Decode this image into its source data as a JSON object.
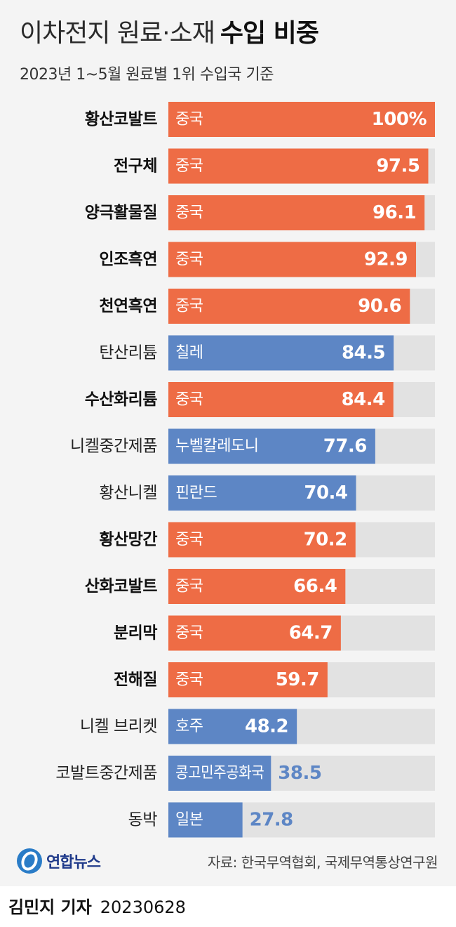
{
  "title": {
    "light": "이차전지 원료·소재",
    "bold": "수입 비중"
  },
  "subtitle": "2023년 1~5월 원료별 1위 수입국 기준",
  "colors": {
    "china": "#ee6c45",
    "other": "#5d86c5",
    "track": "#e2e2e2",
    "outside_value": "#5d86c5"
  },
  "chart_data": {
    "type": "bar",
    "orientation": "horizontal",
    "title": "이차전지 원료·소재 수입 비중",
    "subtitle": "2023년 1~5월 원료별 1위 수입국 기준",
    "xlim": [
      0,
      100
    ],
    "categories": [
      "황산코발트",
      "전구체",
      "양극활물질",
      "인조흑연",
      "천연흑연",
      "탄산리튬",
      "수산화리튬",
      "니켈중간제품",
      "황산니켈",
      "황산망간",
      "산화코발트",
      "분리막",
      "전해질",
      "니켈 브리켓",
      "코발트중간제품",
      "동박"
    ],
    "countries": [
      "중국",
      "중국",
      "중국",
      "중국",
      "중국",
      "칠레",
      "중국",
      "누벨칼레도니",
      "핀란드",
      "중국",
      "중국",
      "중국",
      "중국",
      "호주",
      "콩고민주공화국",
      "일본"
    ],
    "value_labels": [
      "100%",
      "97.5",
      "96.1",
      "92.9",
      "90.6",
      "84.5",
      "84.4",
      "77.6",
      "70.4",
      "70.2",
      "66.4",
      "64.7",
      "59.7",
      "48.2",
      "38.5",
      "27.8"
    ],
    "values": [
      100,
      97.5,
      96.1,
      92.9,
      90.6,
      84.5,
      84.4,
      77.6,
      70.4,
      70.2,
      66.4,
      64.7,
      59.7,
      48.2,
      38.5,
      27.8
    ],
    "is_china": [
      true,
      true,
      true,
      true,
      true,
      false,
      true,
      false,
      false,
      true,
      true,
      true,
      true,
      false,
      false,
      false
    ]
  },
  "footer": {
    "logo_text": "연합뉴스",
    "source": "자료: 한국무역협회, 국제무역통상연구원",
    "reporter": "김민지 기자",
    "date": "20230628"
  }
}
